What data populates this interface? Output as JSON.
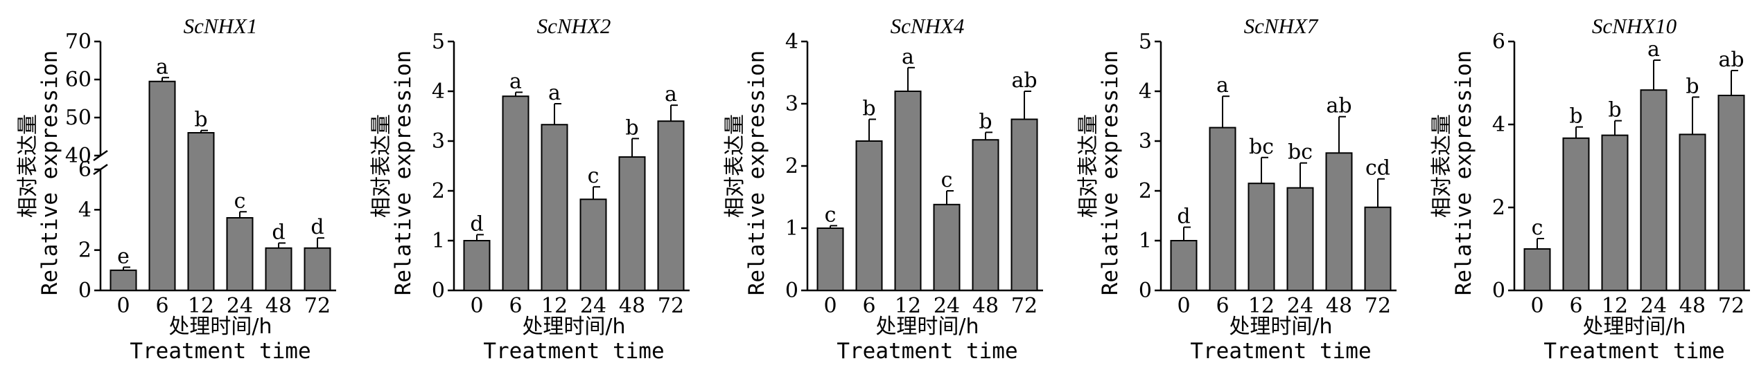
{
  "chart_data": [
    {
      "type": "bar",
      "title": "ScNHX1",
      "ylabel_cn": "相对表达量",
      "ylabel": "Relative expression",
      "xlabel_cn": "处理时间/h",
      "xlabel": "Treatment time",
      "categories": [
        "0",
        "6",
        "12",
        "24",
        "48",
        "72"
      ],
      "values": [
        1.0,
        59.5,
        46.0,
        3.6,
        2.1,
        2.1
      ],
      "errors": [
        0.15,
        1.0,
        0.6,
        0.3,
        0.25,
        0.5
      ],
      "letters": [
        "e",
        "a",
        "b",
        "c",
        "d",
        "d"
      ],
      "broken_axis": true,
      "lower_range": [
        0,
        6
      ],
      "upper_range": [
        40,
        70
      ],
      "lower_ticks": [
        "0",
        "2",
        "4",
        "6"
      ],
      "upper_ticks": [
        "40",
        "50",
        "60",
        "70"
      ]
    },
    {
      "type": "bar",
      "title": "ScNHX2",
      "ylabel_cn": "相对表达量",
      "ylabel": "Relative expression",
      "xlabel_cn": "处理时间/h",
      "xlabel": "Treatment time",
      "categories": [
        "0",
        "6",
        "12",
        "24",
        "48",
        "72"
      ],
      "values": [
        1.0,
        3.9,
        3.33,
        1.83,
        2.68,
        3.4
      ],
      "errors": [
        0.12,
        0.08,
        0.42,
        0.25,
        0.37,
        0.32
      ],
      "letters": [
        "d",
        "a",
        "a",
        "c",
        "b",
        "a"
      ],
      "ylim": [
        0,
        5
      ],
      "ticks": [
        "0",
        "1",
        "2",
        "3",
        "4",
        "5"
      ]
    },
    {
      "type": "bar",
      "title": "ScNHX4",
      "ylabel_cn": "相对表达量",
      "ylabel": "Relative expression",
      "xlabel_cn": "处理时间/h",
      "xlabel": "Treatment time",
      "categories": [
        "0",
        "6",
        "12",
        "24",
        "48",
        "72"
      ],
      "values": [
        1.0,
        2.4,
        3.2,
        1.38,
        2.42,
        2.75
      ],
      "errors": [
        0.04,
        0.35,
        0.38,
        0.22,
        0.12,
        0.45
      ],
      "letters": [
        "c",
        "b",
        "a",
        "c",
        "b",
        "ab"
      ],
      "ylim": [
        0,
        4
      ],
      "ticks": [
        "0",
        "1",
        "2",
        "3",
        "4"
      ]
    },
    {
      "type": "bar",
      "title": "ScNHX7",
      "ylabel_cn": "相对表达量",
      "ylabel": "Relative expression",
      "xlabel_cn": "处理时间/h",
      "xlabel": "Treatment time",
      "categories": [
        "0",
        "6",
        "12",
        "24",
        "48",
        "72"
      ],
      "values": [
        1.0,
        3.27,
        2.15,
        2.06,
        2.76,
        1.67
      ],
      "errors": [
        0.27,
        0.63,
        0.52,
        0.5,
        0.73,
        0.57
      ],
      "letters": [
        "d",
        "a",
        "bc",
        "bc",
        "ab",
        "cd"
      ],
      "ylim": [
        0,
        5
      ],
      "ticks": [
        "0",
        "1",
        "2",
        "3",
        "4",
        "5"
      ]
    },
    {
      "type": "bar",
      "title": "ScNHX10",
      "ylabel_cn": "相对表达量",
      "ylabel": "Relative expression",
      "xlabel_cn": "处理时间/h",
      "xlabel": "Treatment time",
      "categories": [
        "0",
        "6",
        "12",
        "24",
        "48",
        "72"
      ],
      "values": [
        1.0,
        3.67,
        3.74,
        4.83,
        3.76,
        4.7
      ],
      "errors": [
        0.25,
        0.27,
        0.35,
        0.72,
        0.9,
        0.6
      ],
      "letters": [
        "c",
        "b",
        "b",
        "a",
        "b",
        "ab"
      ],
      "ylim": [
        0,
        6
      ],
      "ticks": [
        "0",
        "2",
        "4",
        "6"
      ]
    }
  ],
  "colors": {
    "bar": "#808080",
    "stroke": "#000000"
  }
}
